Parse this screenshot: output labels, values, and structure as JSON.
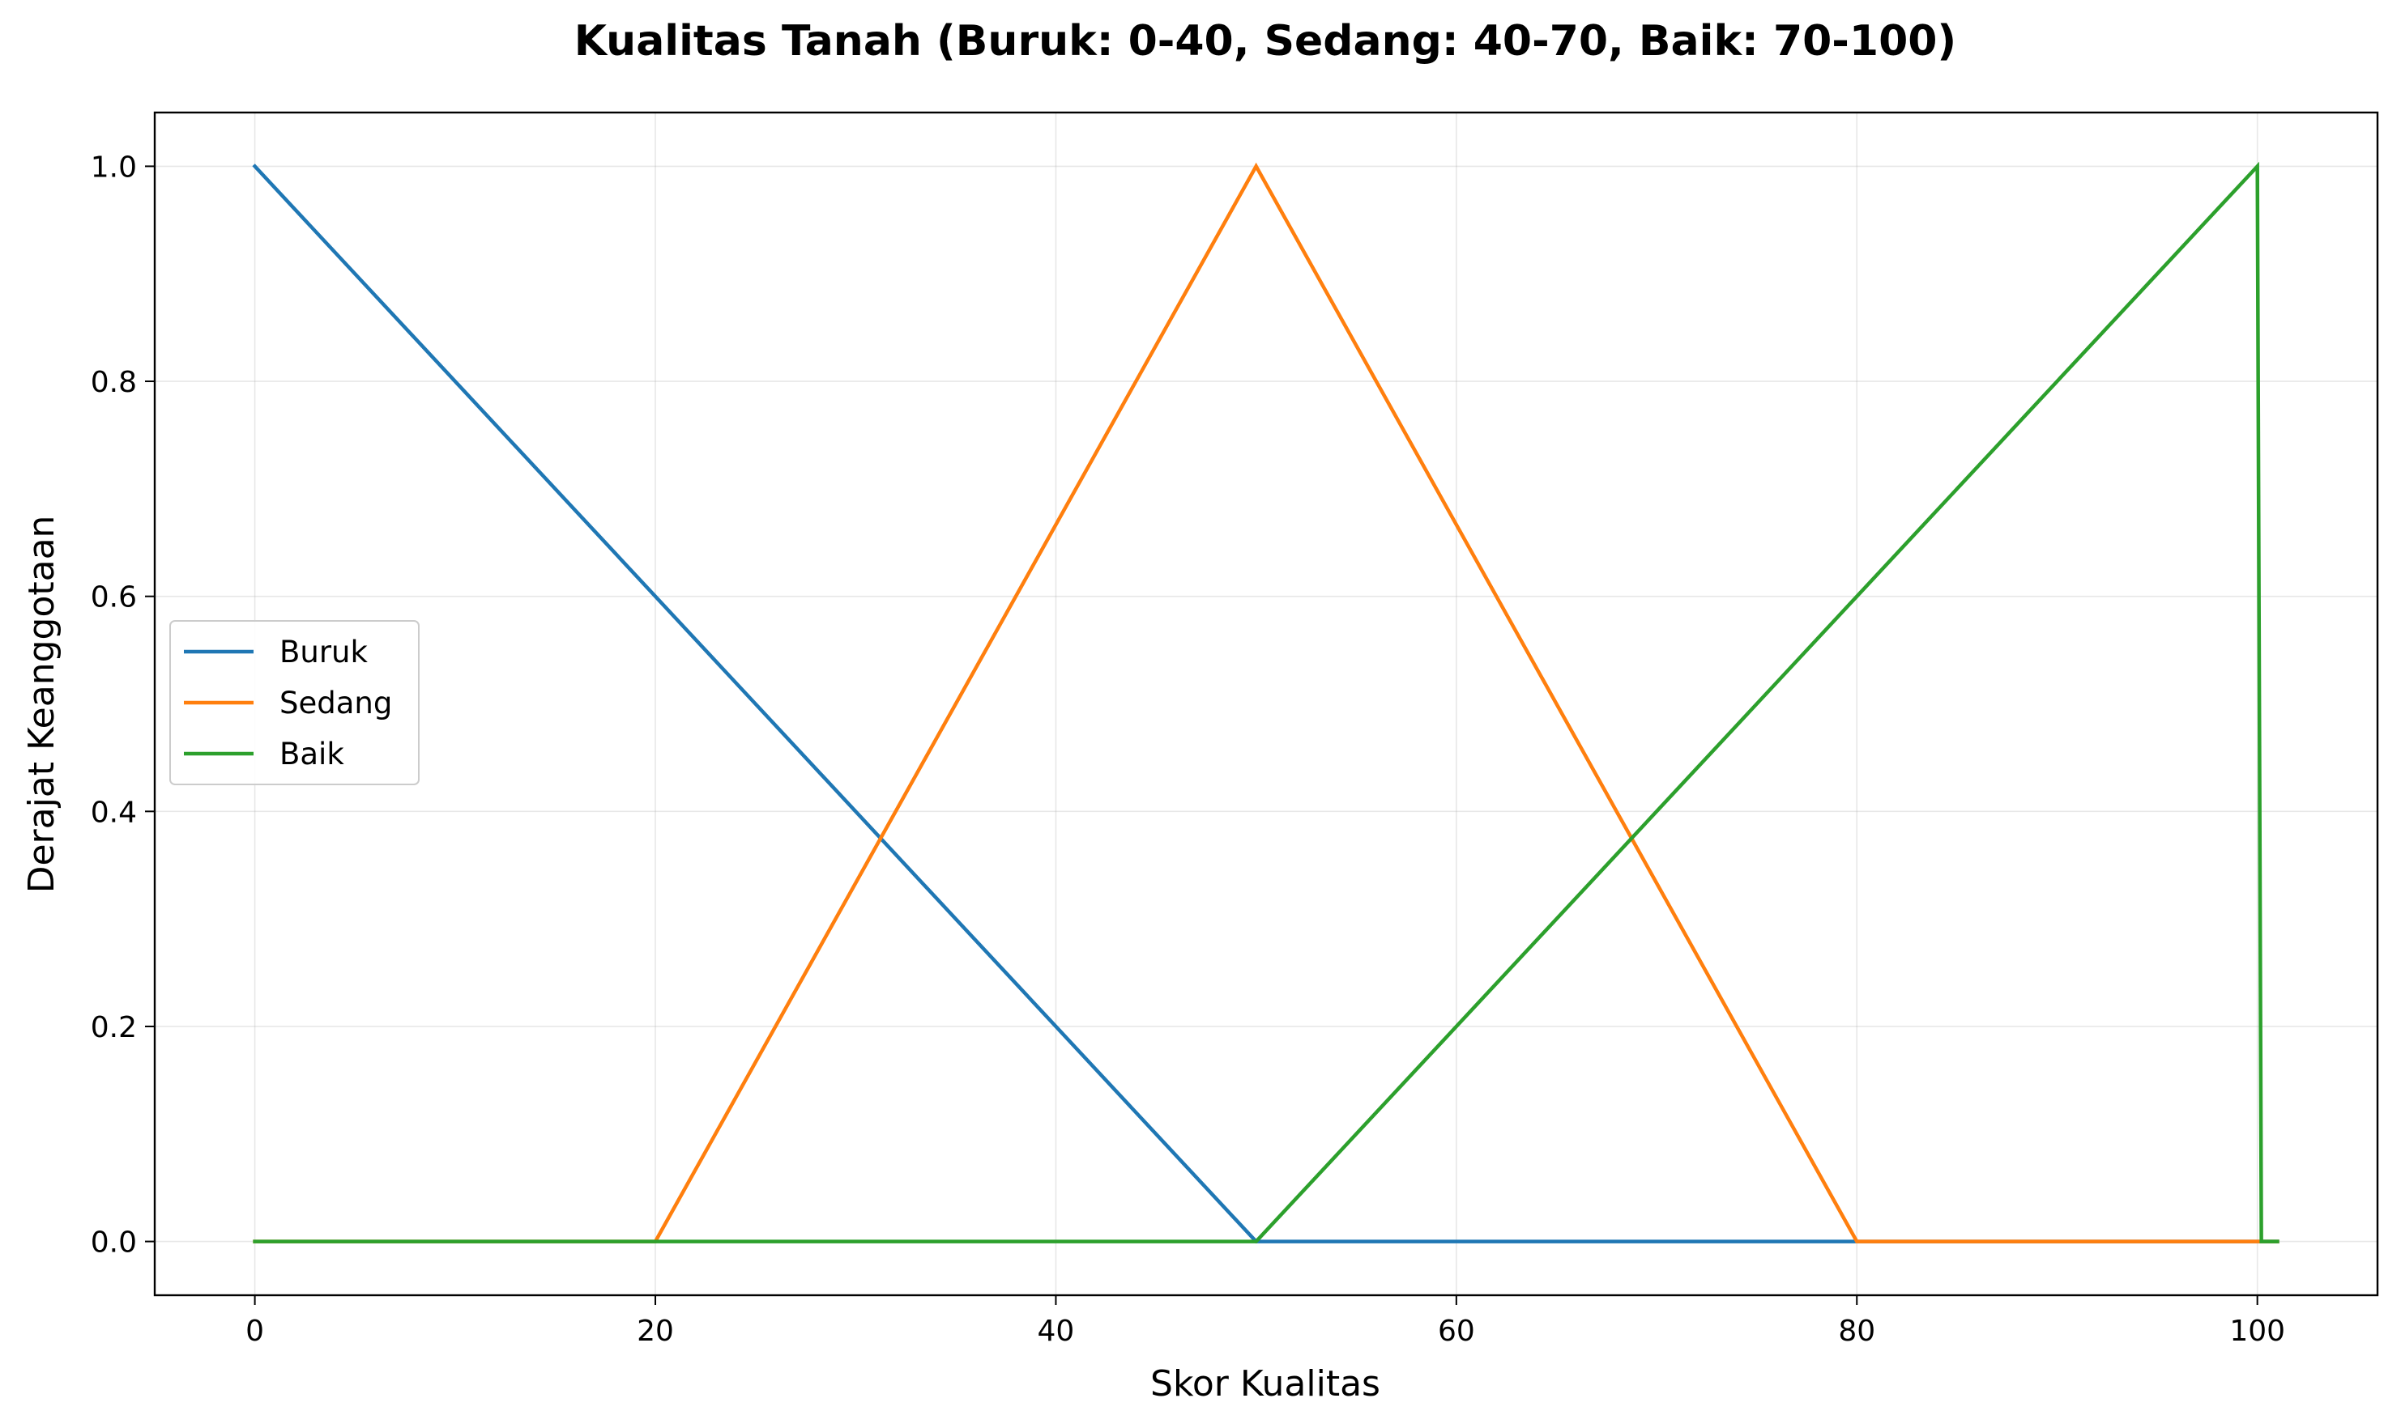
{
  "chart_data": {
    "type": "line",
    "title": "Kualitas Tanah (Buruk: 0-40, Sedang: 40-70, Baik: 70-100)",
    "xlabel": "Skor Kualitas",
    "ylabel": "Derajat Keanggotaan",
    "xlim": [
      -5,
      106
    ],
    "ylim": [
      -0.05,
      1.05
    ],
    "xticks": [
      0,
      20,
      40,
      60,
      80,
      100
    ],
    "xtick_labels": [
      "0",
      "20",
      "40",
      "60",
      "80",
      "100"
    ],
    "yticks": [
      0.0,
      0.2,
      0.4,
      0.6,
      0.8,
      1.0
    ],
    "ytick_labels": [
      "0.0",
      "0.2",
      "0.4",
      "0.6",
      "0.8",
      "1.0"
    ],
    "grid": true,
    "legend_position": "center-left",
    "series": [
      {
        "name": "Buruk",
        "color": "#1f77b4",
        "x": [
          0,
          50,
          101
        ],
        "y": [
          1.0,
          0.0,
          0.0
        ]
      },
      {
        "name": "Sedang",
        "color": "#ff7f0e",
        "x": [
          0,
          20,
          50,
          80,
          101
        ],
        "y": [
          0.0,
          0.0,
          1.0,
          0.0,
          0.0
        ]
      },
      {
        "name": "Baik",
        "color": "#2ca02c",
        "x": [
          0,
          50,
          100,
          100.2,
          101
        ],
        "y": [
          0.0,
          0.0,
          1.0,
          0.0,
          0.0
        ]
      }
    ]
  }
}
